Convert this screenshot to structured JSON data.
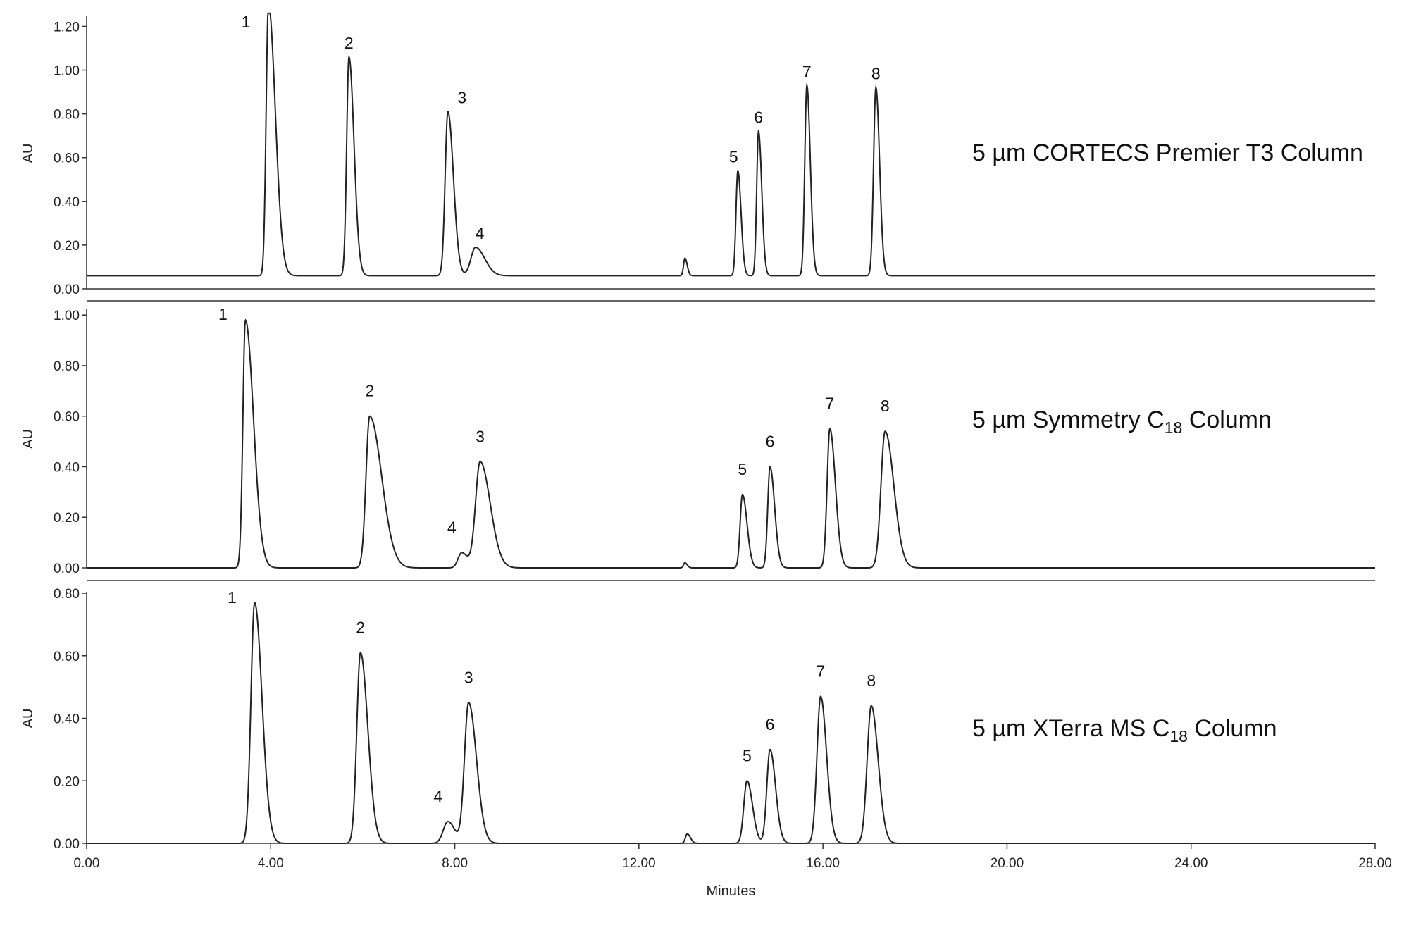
{
  "chart_data": [
    {
      "type": "line",
      "title": "5 µm CORTECS Premier T3 Column",
      "ylabel": "AU",
      "xlabel": "",
      "xlim": [
        0,
        28
      ],
      "ylim": [
        0,
        1.24
      ],
      "yticks": [
        "0.00",
        "0.20",
        "0.40",
        "0.60",
        "0.80",
        "1.00",
        "1.20"
      ],
      "yticks_values": [
        0,
        0.2,
        0.4,
        0.6,
        0.8,
        1.0,
        1.2
      ],
      "baseline": 0.06,
      "peaks": [
        {
          "label": "1",
          "t": 3.95,
          "h": 1.24,
          "w": 0.05,
          "tail": 0.1
        },
        {
          "label": "2",
          "t": 5.7,
          "h": 1.0,
          "w": 0.05,
          "tail": 0.06
        },
        {
          "label": "3",
          "t": 7.85,
          "h": 0.75,
          "w": 0.06,
          "tail": 0.06
        },
        {
          "label": "4",
          "t": 8.45,
          "h": 0.13,
          "w": 0.1,
          "tail": 0.1
        },
        {
          "label": "",
          "t": 13.0,
          "h": 0.08,
          "w": 0.03,
          "tail": 0.02
        },
        {
          "label": "5",
          "t": 14.15,
          "h": 0.48,
          "w": 0.04,
          "tail": 0.03
        },
        {
          "label": "6",
          "t": 14.6,
          "h": 0.66,
          "w": 0.04,
          "tail": 0.03
        },
        {
          "label": "7",
          "t": 15.65,
          "h": 0.87,
          "w": 0.045,
          "tail": 0.03
        },
        {
          "label": "8",
          "t": 17.15,
          "h": 0.86,
          "w": 0.05,
          "tail": 0.03
        }
      ]
    },
    {
      "type": "line",
      "title_main": "5 µm Symmetry C",
      "title_sub": "18",
      "title_tail": " Column",
      "ylabel": "AU",
      "xlabel": "",
      "xlim": [
        0,
        28
      ],
      "ylim": [
        0,
        1.02
      ],
      "yticks": [
        "0.00",
        "0.20",
        "0.40",
        "0.60",
        "0.80",
        "1.00"
      ],
      "yticks_values": [
        0,
        0.2,
        0.4,
        0.6,
        0.8,
        1.0
      ],
      "baseline": 0.0,
      "peaks": [
        {
          "label": "1",
          "t": 3.45,
          "h": 0.98,
          "w": 0.055,
          "tail": 0.12
        },
        {
          "label": "2",
          "t": 6.15,
          "h": 0.6,
          "w": 0.08,
          "tail": 0.18
        },
        {
          "label": "4",
          "t": 8.15,
          "h": 0.06,
          "w": 0.08,
          "tail": 0.05
        },
        {
          "label": "3",
          "t": 8.55,
          "h": 0.42,
          "w": 0.1,
          "tail": 0.12
        },
        {
          "label": "",
          "t": 13.0,
          "h": 0.02,
          "w": 0.03,
          "tail": 0.02
        },
        {
          "label": "5",
          "t": 14.25,
          "h": 0.29,
          "w": 0.05,
          "tail": 0.05
        },
        {
          "label": "6",
          "t": 14.85,
          "h": 0.4,
          "w": 0.05,
          "tail": 0.05
        },
        {
          "label": "7",
          "t": 16.15,
          "h": 0.55,
          "w": 0.06,
          "tail": 0.06
        },
        {
          "label": "8",
          "t": 17.35,
          "h": 0.54,
          "w": 0.09,
          "tail": 0.1
        }
      ]
    },
    {
      "type": "line",
      "title_main": "5 µm XTerra MS C",
      "title_sub": "18",
      "title_tail": " Column",
      "ylabel": "AU",
      "xlabel": "Minutes",
      "xlim": [
        0,
        28
      ],
      "ylim": [
        0,
        0.8
      ],
      "yticks": [
        "0.00",
        "0.20",
        "0.40",
        "0.60",
        "0.80"
      ],
      "yticks_values": [
        0,
        0.2,
        0.4,
        0.6,
        0.8
      ],
      "xticks": [
        "0.00",
        "4.00",
        "8.00",
        "12.00",
        "16.00",
        "20.00",
        "24.00",
        "28.00"
      ],
      "xticks_values": [
        0,
        4,
        8,
        12,
        16,
        20,
        24,
        28
      ],
      "baseline": 0.0,
      "peaks": [
        {
          "label": "1",
          "t": 3.65,
          "h": 0.77,
          "w": 0.08,
          "tail": 0.08
        },
        {
          "label": "2",
          "t": 5.95,
          "h": 0.61,
          "w": 0.08,
          "tail": 0.08
        },
        {
          "label": "4",
          "t": 7.85,
          "h": 0.07,
          "w": 0.1,
          "tail": 0.05
        },
        {
          "label": "3",
          "t": 8.3,
          "h": 0.45,
          "w": 0.09,
          "tail": 0.08
        },
        {
          "label": "",
          "t": 13.05,
          "h": 0.03,
          "w": 0.04,
          "tail": 0.03
        },
        {
          "label": "5",
          "t": 14.35,
          "h": 0.2,
          "w": 0.07,
          "tail": 0.05
        },
        {
          "label": "6",
          "t": 14.85,
          "h": 0.3,
          "w": 0.07,
          "tail": 0.05
        },
        {
          "label": "7",
          "t": 15.95,
          "h": 0.47,
          "w": 0.08,
          "tail": 0.05
        },
        {
          "label": "8",
          "t": 17.05,
          "h": 0.44,
          "w": 0.09,
          "tail": 0.06
        }
      ]
    }
  ]
}
